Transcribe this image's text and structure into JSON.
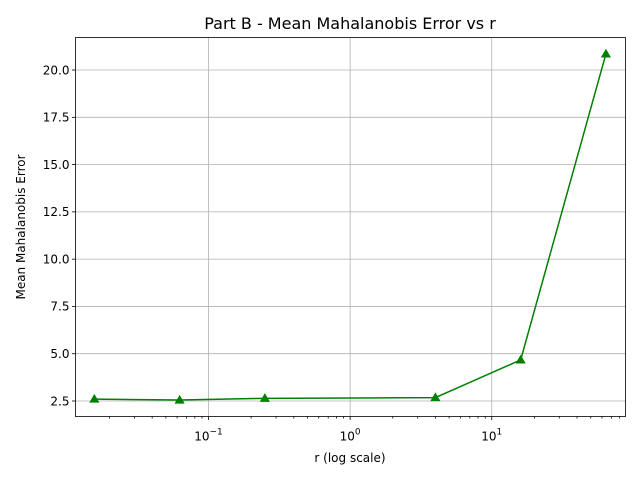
{
  "chart_data": {
    "type": "line",
    "title": "Part B - Mean Mahalanobis Error vs r",
    "xlabel": "r (log scale)",
    "ylabel": "Mean Mahalanobis Error",
    "xscale": "log",
    "xlim": [
      0.0115,
      88
    ],
    "ylim": [
      1.68,
      21.72
    ],
    "grid": true,
    "x_ticks": [
      {
        "value": 0.1,
        "base": "10",
        "exp": "−1"
      },
      {
        "value": 1,
        "base": "10",
        "exp": "0"
      },
      {
        "value": 10,
        "base": "10",
        "exp": "1"
      }
    ],
    "y_ticks": [
      2.5,
      5.0,
      7.5,
      10.0,
      12.5,
      15.0,
      17.5,
      20.0
    ],
    "y_tick_labels": [
      "2.5",
      "5.0",
      "7.5",
      "10.0",
      "12.5",
      "15.0",
      "17.5",
      "20.0"
    ],
    "series": [
      {
        "color": "#008000",
        "marker": "triangle-up",
        "x": [
          0.015625,
          0.0625,
          0.25,
          4,
          16,
          64
        ],
        "y": [
          2.6,
          2.55,
          2.64,
          2.68,
          4.67,
          20.85
        ]
      }
    ]
  }
}
